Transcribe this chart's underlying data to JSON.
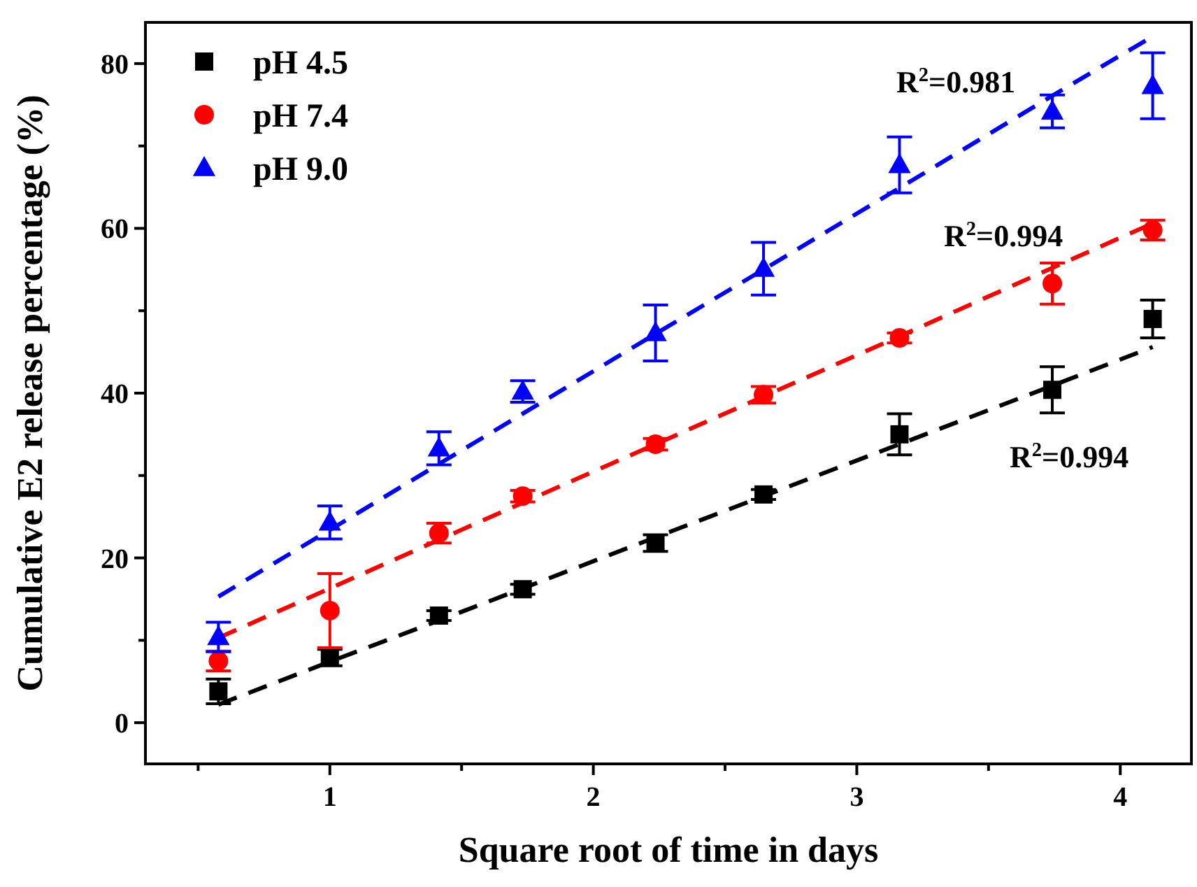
{
  "chart_data": {
    "type": "scatter",
    "xlabel": "Square root of time in days",
    "ylabel": "Cumulative E2 release percentage (%)",
    "x": [
      0.577,
      1,
      1.414,
      1.732,
      2.236,
      2.646,
      3.162,
      3.742,
      4.123
    ],
    "xlim": [
      0.3,
      4.27
    ],
    "xticks": [
      {
        "value": 0.5,
        "label": null
      },
      1,
      {
        "value": 1.5,
        "label": null
      },
      2,
      {
        "value": 2.5,
        "label": null
      },
      3,
      {
        "value": 3.5,
        "label": null
      },
      4
    ],
    "ylim": [
      -5,
      85
    ],
    "yticks": [
      0,
      {
        "value": 10,
        "label": null
      },
      20,
      {
        "value": 30,
        "label": null
      },
      40,
      {
        "value": 50,
        "label": null
      },
      60,
      {
        "value": 70,
        "label": null
      },
      80
    ],
    "legend": "top left",
    "grid": false,
    "series": [
      {
        "name": "pH 4.5",
        "color": "#000000",
        "marker": "square",
        "values": [
          3.8,
          7.9,
          13,
          16.2,
          21.8,
          27.7,
          35,
          40.4,
          49
        ],
        "errors": [
          1.5,
          1,
          0.6,
          0.6,
          1,
          0.6,
          2.5,
          2.8,
          2.3
        ]
      },
      {
        "name": "pH 7.4",
        "color": "#ff0000",
        "marker": "circle",
        "values": [
          7.5,
          13.6,
          23,
          27.5,
          33.8,
          39.8,
          46.7,
          53.3,
          59.8
        ],
        "errors": [
          1.2,
          4.5,
          1.2,
          0.7,
          0.7,
          1,
          0.6,
          2.5,
          1.2
        ]
      },
      {
        "name": "pH 9.0",
        "color": "#0000ff",
        "marker": "triangle",
        "values": [
          10.4,
          24.3,
          33.3,
          40.2,
          47.3,
          55.1,
          67.7,
          74.2,
          77.3
        ],
        "errors": [
          1.8,
          2,
          2,
          1.3,
          3.4,
          3.2,
          3.4,
          2,
          4
        ]
      },
      {
        "type": "line",
        "color": "#000000",
        "line_style": "dashed",
        "marker": "none",
        "values": [
          2.2,
          7.4,
          12.4,
          16.3,
          22.5,
          27.5,
          33.8,
          40.9,
          45.6
        ]
      },
      {
        "type": "line",
        "color": "#ff0000",
        "line_style": "dashed",
        "marker": "none",
        "values": [
          10.3,
          16.3,
          22.2,
          26.7,
          33.8,
          39.6,
          46.9,
          55.2,
          60.6
        ]
      },
      {
        "type": "line",
        "color": "#0000ff",
        "line_style": "dashed",
        "marker": "none",
        "values": [
          15.3,
          23.4,
          31.4,
          37.5,
          47.2,
          55.0,
          64.9,
          76.1,
          83.3
        ]
      }
    ],
    "annotations": [
      "R$^{2}$=0.981",
      "R$^{2}$=0.994",
      "R$^{2}$=0.994"
    ]
  }
}
